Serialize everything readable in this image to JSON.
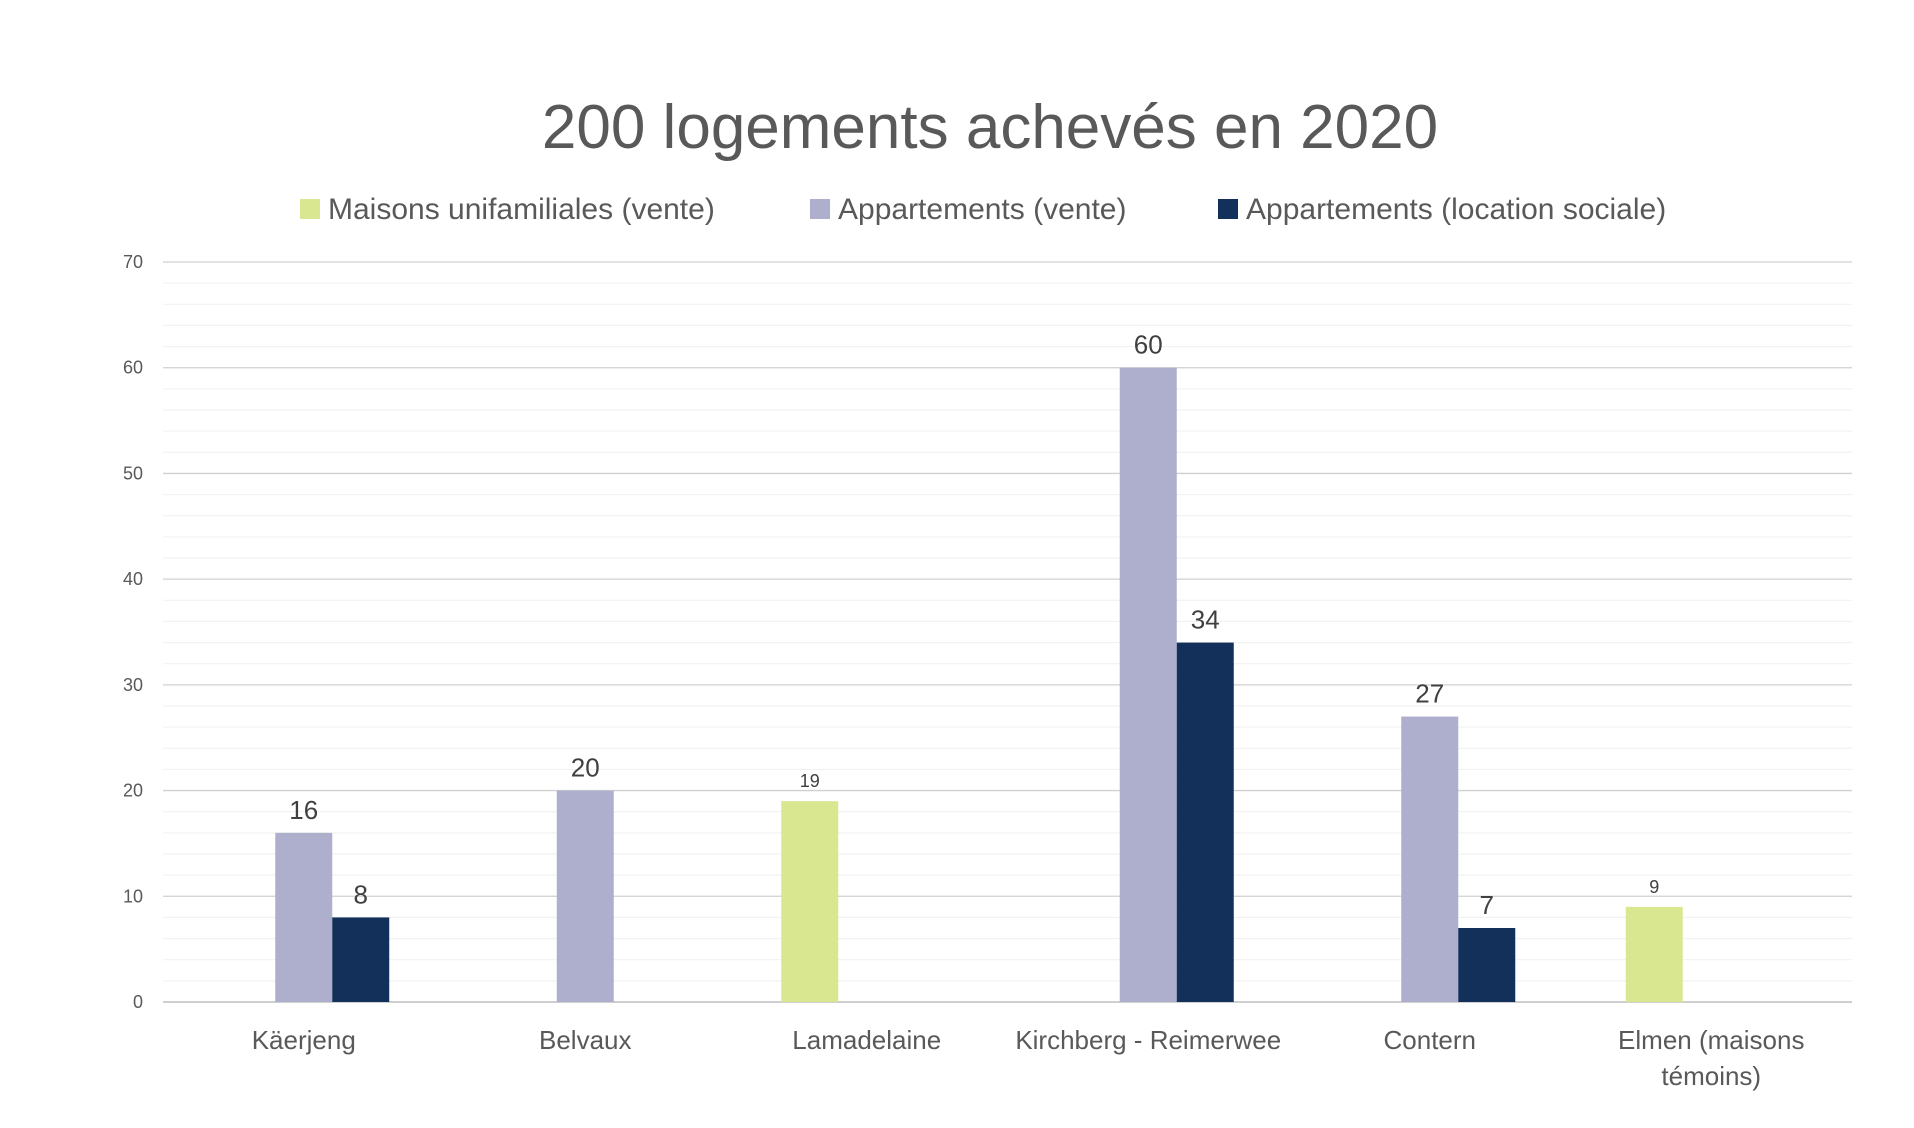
{
  "chart_data": {
    "type": "bar",
    "title": "200 logements achevés en 2020",
    "xlabel": "",
    "ylabel": "",
    "ylim": [
      0,
      70
    ],
    "yticks": [
      "0",
      "10",
      "20",
      "30",
      "40",
      "50",
      "60",
      "70"
    ],
    "grid": true,
    "legend_position": "top",
    "categories": [
      [
        "Käerjeng"
      ],
      [
        "Belvaux"
      ],
      [
        "Lamadelaine"
      ],
      [
        "Kirchberg - Reimerwee"
      ],
      [
        "Contern"
      ],
      [
        "Elmen (maisons",
        "témoins)"
      ]
    ],
    "series": [
      {
        "name": "Maisons unifamiliales (vente)",
        "color": "#dae791",
        "values": [
          null,
          null,
          19,
          null,
          null,
          9
        ],
        "labels": [
          "",
          "",
          "19",
          "",
          "",
          "9"
        ]
      },
      {
        "name": "Appartements (vente)",
        "color": "#adafcd",
        "values": [
          16,
          20,
          null,
          60,
          27,
          null
        ],
        "labels": [
          "16",
          "20",
          "",
          "60",
          "27",
          ""
        ]
      },
      {
        "name": "Appartements (location sociale)",
        "color": "#13305a",
        "values": [
          8,
          null,
          null,
          34,
          7,
          null
        ],
        "labels": [
          "8",
          "",
          "",
          "34",
          "7",
          ""
        ]
      }
    ]
  }
}
